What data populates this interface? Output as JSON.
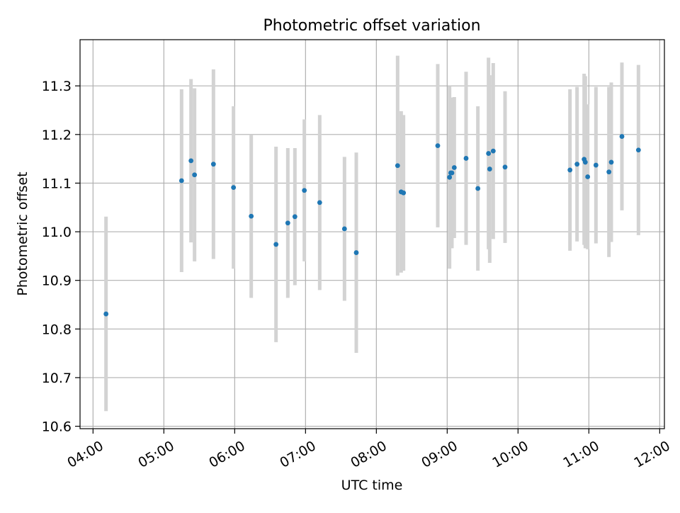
{
  "chart_data": {
    "type": "scatter",
    "title": "Photometric offset variation",
    "xlabel": "UTC time",
    "ylabel": "Photometric offset",
    "xlim": [
      "03:49",
      "12:04"
    ],
    "ylim": [
      10.595,
      11.395
    ],
    "x_ticks": [
      "04:00",
      "05:00",
      "06:00",
      "07:00",
      "08:00",
      "09:00",
      "10:00",
      "11:00",
      "12:00"
    ],
    "y_ticks": [
      10.6,
      10.7,
      10.8,
      10.9,
      11.0,
      11.1,
      11.2,
      11.3
    ],
    "y_tick_labels": [
      "10.6",
      "10.7",
      "10.8",
      "10.9",
      "11.0",
      "11.1",
      "11.2",
      "11.3"
    ],
    "grid": true,
    "error_bar_color": "#d3d3d3",
    "marker_color": "#1f77b4",
    "series": [
      {
        "points": [
          {
            "x": "04:11",
            "y": 10.831,
            "err": 0.2
          },
          {
            "x": "05:15",
            "y": 11.105,
            "err": 0.188
          },
          {
            "x": "05:23",
            "y": 11.146,
            "err": 0.168
          },
          {
            "x": "05:26",
            "y": 11.117,
            "err": 0.178
          },
          {
            "x": "05:42",
            "y": 11.139,
            "err": 0.195
          },
          {
            "x": "05:59",
            "y": 11.091,
            "err": 0.167
          },
          {
            "x": "06:14",
            "y": 11.032,
            "err": 0.168
          },
          {
            "x": "06:35",
            "y": 10.974,
            "err": 0.201
          },
          {
            "x": "06:45",
            "y": 11.018,
            "err": 0.154
          },
          {
            "x": "06:51",
            "y": 11.031,
            "err": 0.141
          },
          {
            "x": "06:59",
            "y": 11.085,
            "err": 0.146
          },
          {
            "x": "07:12",
            "y": 11.06,
            "err": 0.18
          },
          {
            "x": "07:33",
            "y": 11.006,
            "err": 0.148
          },
          {
            "x": "07:43",
            "y": 10.957,
            "err": 0.206
          },
          {
            "x": "08:18",
            "y": 11.136,
            "err": 0.226
          },
          {
            "x": "08:21",
            "y": 11.082,
            "err": 0.166
          },
          {
            "x": "08:23",
            "y": 11.08,
            "err": 0.16
          },
          {
            "x": "08:52",
            "y": 11.177,
            "err": 0.168
          },
          {
            "x": "09:02",
            "y": 11.112,
            "err": 0.188
          },
          {
            "x": "09:03",
            "y": 11.121,
            "err": 0.15
          },
          {
            "x": "09:04",
            "y": 11.121,
            "err": 0.155
          },
          {
            "x": "09:06",
            "y": 11.132,
            "err": 0.145
          },
          {
            "x": "09:16",
            "y": 11.151,
            "err": 0.178
          },
          {
            "x": "09:26",
            "y": 11.089,
            "err": 0.169
          },
          {
            "x": "09:35",
            "y": 11.161,
            "err": 0.197
          },
          {
            "x": "09:36",
            "y": 11.129,
            "err": 0.193
          },
          {
            "x": "09:39",
            "y": 11.166,
            "err": 0.181
          },
          {
            "x": "09:49",
            "y": 11.133,
            "err": 0.156
          },
          {
            "x": "10:44",
            "y": 11.127,
            "err": 0.166
          },
          {
            "x": "10:50",
            "y": 11.139,
            "err": 0.159
          },
          {
            "x": "10:56",
            "y": 11.149,
            "err": 0.176
          },
          {
            "x": "10:57",
            "y": 11.143,
            "err": 0.177
          },
          {
            "x": "10:59",
            "y": 11.113,
            "err": 0.149
          },
          {
            "x": "11:06",
            "y": 11.137,
            "err": 0.161
          },
          {
            "x": "11:17",
            "y": 11.123,
            "err": 0.175
          },
          {
            "x": "11:19",
            "y": 11.143,
            "err": 0.164
          },
          {
            "x": "11:28",
            "y": 11.196,
            "err": 0.152
          },
          {
            "x": "11:42",
            "y": 11.168,
            "err": 0.175
          }
        ]
      }
    ]
  }
}
